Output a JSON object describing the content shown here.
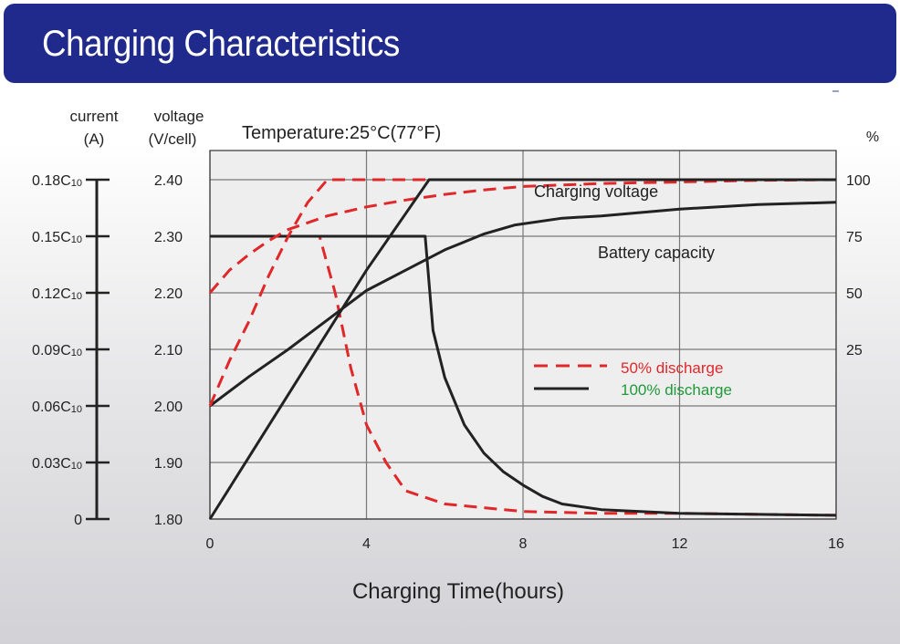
{
  "header": {
    "title": "Charging Characteristics"
  },
  "chart_data": {
    "type": "line",
    "title": "Temperature:25°C(77°F)",
    "xlabel": "Charging Time(hours)",
    "xlim": [
      0,
      16
    ],
    "x_ticks": [
      "0",
      "4",
      "8",
      "12",
      "16"
    ],
    "grid": true,
    "axes": {
      "current": {
        "label_line1": "current",
        "label_line2": "(A)",
        "ticks": [
          {
            "value": 0.18,
            "base": "0.18C",
            "sub": "10"
          },
          {
            "value": 0.15,
            "base": "0.15C",
            "sub": "10"
          },
          {
            "value": 0.12,
            "base": "0.12C",
            "sub": "10"
          },
          {
            "value": 0.09,
            "base": "0.09C",
            "sub": "10"
          },
          {
            "value": 0.06,
            "base": "0.06C",
            "sub": "10"
          },
          {
            "value": 0.03,
            "base": "0.03C",
            "sub": "10"
          },
          {
            "value": 0,
            "base": "0",
            "sub": ""
          }
        ],
        "range": [
          0,
          0.18
        ]
      },
      "voltage": {
        "label_line1": "voltage",
        "label_line2": "(V/cell)",
        "ticks": [
          "2.40",
          "2.30",
          "2.20",
          "2.10",
          "2.00",
          "1.90",
          "1.80"
        ],
        "range": [
          1.8,
          2.4
        ]
      },
      "capacity": {
        "label": "%",
        "ticks": [
          "100",
          "75",
          "50",
          "25"
        ],
        "range": [
          -50,
          100
        ]
      }
    },
    "annotations": {
      "charging_voltage": "Charging voltage",
      "battery_capacity": "Battery capacity"
    },
    "legend": {
      "placement": "inside-right",
      "items": [
        {
          "label": "50% discharge",
          "style": "dashed",
          "line_color": "#e0282a",
          "text_color": "#e0282a"
        },
        {
          "label": "100% discharge",
          "style": "solid",
          "line_color": "#222222",
          "text_color": "#1f9a3a"
        }
      ]
    },
    "series": [
      {
        "name": "Charging voltage (50% discharge)",
        "axis": "voltage",
        "style": "dashed",
        "points": [
          [
            0,
            2.0
          ],
          [
            0.5,
            2.08
          ],
          [
            1,
            2.15
          ],
          [
            1.5,
            2.23
          ],
          [
            2,
            2.3
          ],
          [
            2.5,
            2.36
          ],
          [
            3,
            2.4
          ],
          [
            16,
            2.4
          ]
        ]
      },
      {
        "name": "Charging voltage (100% discharge)",
        "axis": "voltage",
        "style": "solid",
        "points": [
          [
            0,
            1.8
          ],
          [
            1,
            1.91
          ],
          [
            2,
            2.02
          ],
          [
            3,
            2.13
          ],
          [
            4,
            2.24
          ],
          [
            5,
            2.34
          ],
          [
            5.6,
            2.4
          ],
          [
            16,
            2.4
          ]
        ]
      },
      {
        "name": "Battery capacity (50% discharge)",
        "axis": "capacity",
        "style": "dashed",
        "points": [
          [
            0,
            50
          ],
          [
            0.5,
            60
          ],
          [
            1,
            67
          ],
          [
            1.5,
            73
          ],
          [
            2,
            78
          ],
          [
            3,
            84
          ],
          [
            4,
            88
          ],
          [
            5,
            91
          ],
          [
            6,
            93.5
          ],
          [
            7,
            95.5
          ],
          [
            8,
            97
          ],
          [
            10,
            98.3
          ],
          [
            12,
            99
          ],
          [
            14,
            99.7
          ],
          [
            16,
            100
          ]
        ]
      },
      {
        "name": "Battery capacity (100% discharge)",
        "axis": "capacity",
        "style": "solid",
        "points": [
          [
            0,
            0
          ],
          [
            1,
            13
          ],
          [
            2,
            25
          ],
          [
            3,
            38
          ],
          [
            4,
            51
          ],
          [
            5,
            60
          ],
          [
            6,
            69
          ],
          [
            7,
            76
          ],
          [
            7.8,
            80
          ],
          [
            9,
            83
          ],
          [
            10,
            84
          ],
          [
            12,
            87
          ],
          [
            14,
            89
          ],
          [
            16,
            90
          ]
        ]
      },
      {
        "name": "Charging current (50% discharge)",
        "axis": "current",
        "style": "dashed",
        "points": [
          [
            0,
            0.15
          ],
          [
            2.8,
            0.15
          ],
          [
            3.2,
            0.12
          ],
          [
            3.6,
            0.08
          ],
          [
            4,
            0.05
          ],
          [
            4.5,
            0.03
          ],
          [
            5,
            0.015
          ],
          [
            6,
            0.008
          ],
          [
            8,
            0.004
          ],
          [
            10,
            0.003
          ],
          [
            12,
            0.003
          ],
          [
            16,
            0.002
          ]
        ]
      },
      {
        "name": "Charging current (100% discharge)",
        "axis": "current",
        "style": "solid",
        "points": [
          [
            0,
            0.15
          ],
          [
            5.5,
            0.15
          ],
          [
            5.7,
            0.1
          ],
          [
            6,
            0.075
          ],
          [
            6.5,
            0.05
          ],
          [
            7,
            0.035
          ],
          [
            7.5,
            0.025
          ],
          [
            8,
            0.018
          ],
          [
            8.5,
            0.012
          ],
          [
            9,
            0.008
          ],
          [
            10,
            0.005
          ],
          [
            12,
            0.003
          ],
          [
            16,
            0.002
          ]
        ]
      }
    ]
  }
}
